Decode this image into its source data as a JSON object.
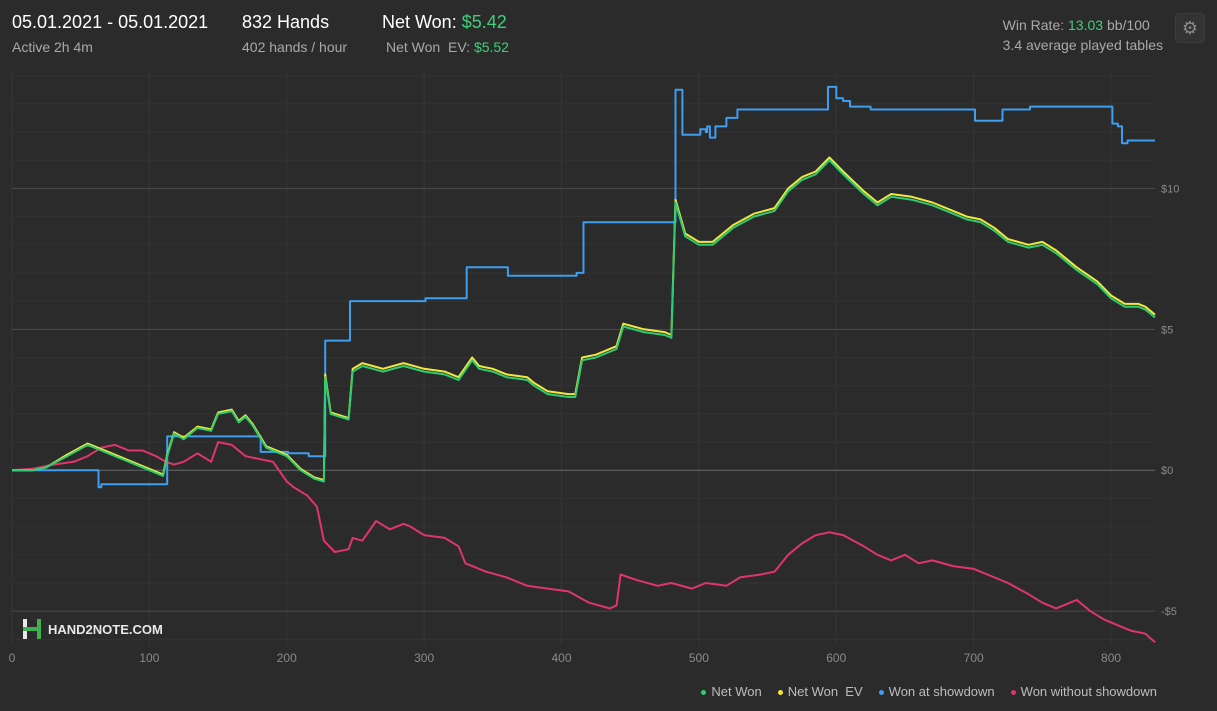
{
  "header": {
    "date_range": "05.01.2021 - 05.01.2021",
    "active": "Active 2h 4m",
    "hands": "832 Hands",
    "hands_per_hour": "402 hands / hour",
    "net_won_label": "Net Won:",
    "net_won_value": "$5.42",
    "net_won_ev_label": "Net Won  EV:",
    "net_won_ev_value": "$5.52",
    "win_rate_label": "Win Rate:",
    "win_rate_value": "13.03",
    "win_rate_unit": "bb/100",
    "avg_tables": "3.4 average played tables"
  },
  "logo": {
    "text": "HAND2NOTE.COM"
  },
  "colors": {
    "net_won": "#2ecc71",
    "net_won_ev": "#f0e93c",
    "showdown": "#3e9ef0",
    "non_showdown": "#e0356b"
  },
  "chart_data": {
    "type": "line",
    "xlim": [
      0,
      832
    ],
    "ylim": [
      -6.2,
      14.2
    ],
    "x_ticks": [
      0,
      100,
      200,
      300,
      400,
      500,
      600,
      700,
      800
    ],
    "y_ticks": [
      {
        "value": 10,
        "label": "$10"
      },
      {
        "value": 5,
        "label": "$5"
      },
      {
        "value": 0,
        "label": "$0"
      },
      {
        "value": -5,
        "label": "-$5"
      }
    ],
    "series": [
      {
        "name": "Net Won",
        "points": [
          [
            0,
            0
          ],
          [
            15,
            0
          ],
          [
            25,
            0.1
          ],
          [
            40,
            0.5
          ],
          [
            55,
            0.9
          ],
          [
            65,
            0.7
          ],
          [
            75,
            0.5
          ],
          [
            85,
            0.3
          ],
          [
            95,
            0.1
          ],
          [
            105,
            -0.1
          ],
          [
            110,
            -0.2
          ],
          [
            113,
            0.5
          ],
          [
            118,
            1.3
          ],
          [
            125,
            1.1
          ],
          [
            135,
            1.5
          ],
          [
            145,
            1.4
          ],
          [
            150,
            2.0
          ],
          [
            160,
            2.1
          ],
          [
            165,
            1.7
          ],
          [
            170,
            1.9
          ],
          [
            175,
            1.6
          ],
          [
            185,
            0.8
          ],
          [
            200,
            0.5
          ],
          [
            210,
            0.0
          ],
          [
            220,
            -0.3
          ],
          [
            227,
            -0.4
          ],
          [
            228,
            3.3
          ],
          [
            232,
            2.0
          ],
          [
            245,
            1.8
          ],
          [
            248,
            3.5
          ],
          [
            255,
            3.7
          ],
          [
            270,
            3.5
          ],
          [
            285,
            3.7
          ],
          [
            300,
            3.5
          ],
          [
            315,
            3.4
          ],
          [
            325,
            3.2
          ],
          [
            335,
            3.9
          ],
          [
            340,
            3.6
          ],
          [
            350,
            3.5
          ],
          [
            360,
            3.3
          ],
          [
            375,
            3.2
          ],
          [
            380,
            3.0
          ],
          [
            390,
            2.7
          ],
          [
            405,
            2.6
          ],
          [
            410,
            2.6
          ],
          [
            415,
            3.9
          ],
          [
            425,
            4.0
          ],
          [
            440,
            4.3
          ],
          [
            445,
            5.1
          ],
          [
            460,
            4.9
          ],
          [
            475,
            4.8
          ],
          [
            480,
            4.7
          ],
          [
            483,
            9.5
          ],
          [
            490,
            8.3
          ],
          [
            500,
            8.0
          ],
          [
            510,
            8.0
          ],
          [
            525,
            8.6
          ],
          [
            540,
            9.0
          ],
          [
            555,
            9.2
          ],
          [
            565,
            9.9
          ],
          [
            575,
            10.3
          ],
          [
            585,
            10.5
          ],
          [
            595,
            11.0
          ],
          [
            605,
            10.5
          ],
          [
            620,
            9.8
          ],
          [
            630,
            9.4
          ],
          [
            640,
            9.7
          ],
          [
            655,
            9.6
          ],
          [
            670,
            9.4
          ],
          [
            685,
            9.1
          ],
          [
            695,
            8.9
          ],
          [
            705,
            8.8
          ],
          [
            715,
            8.5
          ],
          [
            725,
            8.1
          ],
          [
            740,
            7.9
          ],
          [
            750,
            8.0
          ],
          [
            760,
            7.7
          ],
          [
            775,
            7.1
          ],
          [
            790,
            6.6
          ],
          [
            800,
            6.1
          ],
          [
            810,
            5.8
          ],
          [
            820,
            5.8
          ],
          [
            825,
            5.7
          ],
          [
            832,
            5.42
          ]
        ]
      },
      {
        "name": "Net Won  EV",
        "points": [
          [
            0,
            0
          ],
          [
            15,
            0
          ],
          [
            25,
            0.1
          ],
          [
            40,
            0.55
          ],
          [
            55,
            0.95
          ],
          [
            65,
            0.75
          ],
          [
            75,
            0.55
          ],
          [
            85,
            0.35
          ],
          [
            95,
            0.15
          ],
          [
            105,
            -0.05
          ],
          [
            110,
            -0.15
          ],
          [
            113,
            0.55
          ],
          [
            118,
            1.35
          ],
          [
            125,
            1.15
          ],
          [
            135,
            1.55
          ],
          [
            145,
            1.45
          ],
          [
            150,
            2.05
          ],
          [
            160,
            2.15
          ],
          [
            165,
            1.75
          ],
          [
            170,
            1.95
          ],
          [
            175,
            1.65
          ],
          [
            185,
            0.85
          ],
          [
            200,
            0.55
          ],
          [
            210,
            0.05
          ],
          [
            220,
            -0.25
          ],
          [
            227,
            -0.35
          ],
          [
            228,
            3.4
          ],
          [
            232,
            2.05
          ],
          [
            245,
            1.85
          ],
          [
            248,
            3.6
          ],
          [
            255,
            3.8
          ],
          [
            270,
            3.6
          ],
          [
            285,
            3.8
          ],
          [
            300,
            3.6
          ],
          [
            315,
            3.5
          ],
          [
            325,
            3.3
          ],
          [
            335,
            4.0
          ],
          [
            340,
            3.7
          ],
          [
            350,
            3.6
          ],
          [
            360,
            3.4
          ],
          [
            375,
            3.3
          ],
          [
            380,
            3.1
          ],
          [
            390,
            2.8
          ],
          [
            405,
            2.7
          ],
          [
            410,
            2.7
          ],
          [
            415,
            4.0
          ],
          [
            425,
            4.1
          ],
          [
            440,
            4.4
          ],
          [
            445,
            5.2
          ],
          [
            460,
            5.0
          ],
          [
            475,
            4.9
          ],
          [
            480,
            4.8
          ],
          [
            483,
            9.6
          ],
          [
            490,
            8.4
          ],
          [
            500,
            8.1
          ],
          [
            510,
            8.1
          ],
          [
            525,
            8.7
          ],
          [
            540,
            9.1
          ],
          [
            555,
            9.3
          ],
          [
            565,
            10.0
          ],
          [
            575,
            10.4
          ],
          [
            585,
            10.6
          ],
          [
            595,
            11.1
          ],
          [
            605,
            10.6
          ],
          [
            620,
            9.9
          ],
          [
            630,
            9.5
          ],
          [
            640,
            9.8
          ],
          [
            655,
            9.7
          ],
          [
            670,
            9.5
          ],
          [
            685,
            9.2
          ],
          [
            695,
            9.0
          ],
          [
            705,
            8.9
          ],
          [
            715,
            8.6
          ],
          [
            725,
            8.2
          ],
          [
            740,
            8.0
          ],
          [
            750,
            8.1
          ],
          [
            760,
            7.8
          ],
          [
            775,
            7.2
          ],
          [
            790,
            6.7
          ],
          [
            800,
            6.2
          ],
          [
            810,
            5.9
          ],
          [
            820,
            5.9
          ],
          [
            825,
            5.8
          ],
          [
            832,
            5.52
          ]
        ]
      },
      {
        "name": "Won at showdown",
        "step": true,
        "points": [
          [
            0,
            0
          ],
          [
            62,
            0
          ],
          [
            63,
            -0.6
          ],
          [
            65,
            -0.5
          ],
          [
            112,
            -0.5
          ],
          [
            113,
            1.2
          ],
          [
            180,
            1.2
          ],
          [
            181,
            0.65
          ],
          [
            200,
            0.65
          ],
          [
            201,
            0.6
          ],
          [
            215,
            0.6
          ],
          [
            216,
            0.5
          ],
          [
            227,
            0.5
          ],
          [
            228,
            4.6
          ],
          [
            245,
            4.6
          ],
          [
            246,
            6.0
          ],
          [
            300,
            6.0
          ],
          [
            301,
            6.1
          ],
          [
            330,
            6.1
          ],
          [
            331,
            7.2
          ],
          [
            360,
            7.2
          ],
          [
            361,
            6.9
          ],
          [
            410,
            6.9
          ],
          [
            411,
            7.0
          ],
          [
            415,
            7.0
          ],
          [
            416,
            8.8
          ],
          [
            482,
            8.8
          ],
          [
            483,
            13.5
          ],
          [
            487,
            13.5
          ],
          [
            488,
            11.9
          ],
          [
            500,
            11.9
          ],
          [
            501,
            12.1
          ],
          [
            505,
            12.0
          ],
          [
            506,
            12.2
          ],
          [
            508,
            11.8
          ],
          [
            512,
            12.2
          ],
          [
            520,
            12.5
          ],
          [
            525,
            12.5
          ],
          [
            528,
            12.8
          ],
          [
            593,
            12.8
          ],
          [
            594,
            13.6
          ],
          [
            600,
            13.2
          ],
          [
            605,
            13.1
          ],
          [
            610,
            12.9
          ],
          [
            625,
            12.8
          ],
          [
            700,
            12.8
          ],
          [
            701,
            12.4
          ],
          [
            720,
            12.4
          ],
          [
            721,
            12.8
          ],
          [
            740,
            12.8
          ],
          [
            741,
            12.9
          ],
          [
            800,
            12.9
          ],
          [
            801,
            12.3
          ],
          [
            805,
            12.2
          ],
          [
            808,
            11.6
          ],
          [
            812,
            11.7
          ],
          [
            832,
            11.7
          ]
        ]
      },
      {
        "name": "Won without showdown",
        "points": [
          [
            0,
            0
          ],
          [
            15,
            0.05
          ],
          [
            30,
            0.2
          ],
          [
            45,
            0.3
          ],
          [
            55,
            0.5
          ],
          [
            65,
            0.8
          ],
          [
            75,
            0.9
          ],
          [
            85,
            0.7
          ],
          [
            95,
            0.7
          ],
          [
            105,
            0.5
          ],
          [
            112,
            0.3
          ],
          [
            118,
            0.2
          ],
          [
            125,
            0.3
          ],
          [
            135,
            0.6
          ],
          [
            145,
            0.3
          ],
          [
            150,
            1.0
          ],
          [
            160,
            0.9
          ],
          [
            170,
            0.5
          ],
          [
            180,
            0.4
          ],
          [
            190,
            0.3
          ],
          [
            200,
            -0.4
          ],
          [
            205,
            -0.6
          ],
          [
            215,
            -0.9
          ],
          [
            222,
            -1.3
          ],
          [
            227,
            -2.5
          ],
          [
            235,
            -2.9
          ],
          [
            245,
            -2.8
          ],
          [
            248,
            -2.4
          ],
          [
            255,
            -2.5
          ],
          [
            265,
            -1.8
          ],
          [
            275,
            -2.1
          ],
          [
            285,
            -1.9
          ],
          [
            290,
            -2.0
          ],
          [
            300,
            -2.3
          ],
          [
            315,
            -2.4
          ],
          [
            325,
            -2.7
          ],
          [
            330,
            -3.3
          ],
          [
            345,
            -3.6
          ],
          [
            360,
            -3.8
          ],
          [
            375,
            -4.1
          ],
          [
            390,
            -4.2
          ],
          [
            405,
            -4.3
          ],
          [
            420,
            -4.7
          ],
          [
            435,
            -4.9
          ],
          [
            440,
            -4.8
          ],
          [
            443,
            -3.7
          ],
          [
            455,
            -3.9
          ],
          [
            470,
            -4.1
          ],
          [
            480,
            -4.0
          ],
          [
            495,
            -4.2
          ],
          [
            505,
            -4.0
          ],
          [
            520,
            -4.1
          ],
          [
            530,
            -3.8
          ],
          [
            545,
            -3.7
          ],
          [
            555,
            -3.6
          ],
          [
            565,
            -3.0
          ],
          [
            575,
            -2.6
          ],
          [
            585,
            -2.3
          ],
          [
            595,
            -2.2
          ],
          [
            605,
            -2.3
          ],
          [
            620,
            -2.7
          ],
          [
            630,
            -3.0
          ],
          [
            640,
            -3.2
          ],
          [
            650,
            -3.0
          ],
          [
            660,
            -3.3
          ],
          [
            670,
            -3.2
          ],
          [
            685,
            -3.4
          ],
          [
            700,
            -3.5
          ],
          [
            710,
            -3.7
          ],
          [
            725,
            -4.0
          ],
          [
            740,
            -4.4
          ],
          [
            750,
            -4.7
          ],
          [
            760,
            -4.9
          ],
          [
            775,
            -4.6
          ],
          [
            785,
            -5.0
          ],
          [
            795,
            -5.3
          ],
          [
            805,
            -5.5
          ],
          [
            815,
            -5.7
          ],
          [
            825,
            -5.8
          ],
          [
            832,
            -6.1
          ]
        ]
      }
    ]
  }
}
